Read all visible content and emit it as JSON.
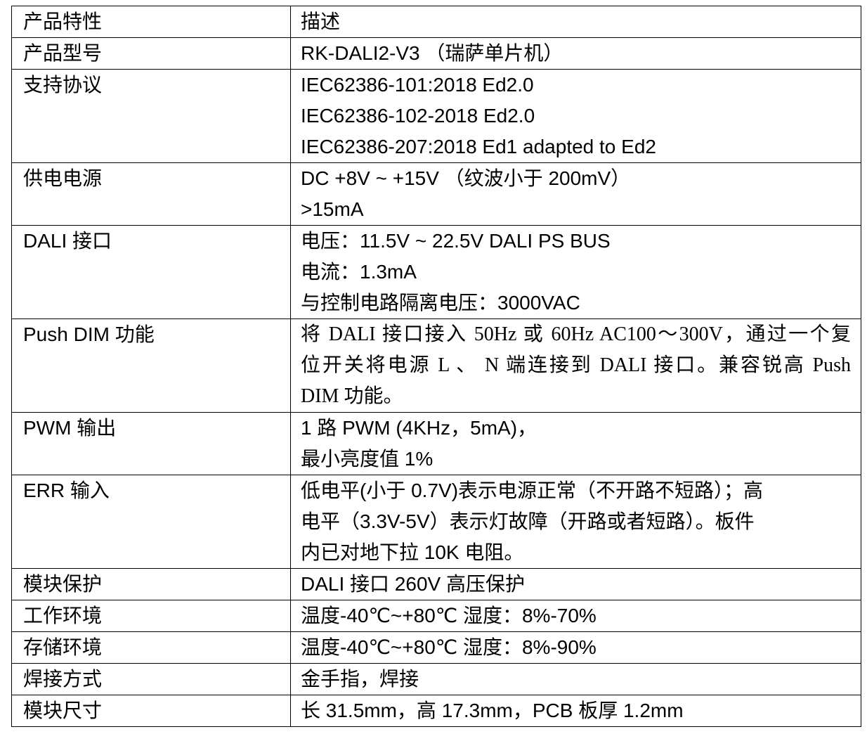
{
  "table": {
    "header": {
      "feature": "产品特性",
      "description": "描述"
    },
    "rows": [
      {
        "feature": "产品型号",
        "lines": [
          "RK-DALI2-V3 （瑞萨单片机）"
        ]
      },
      {
        "feature": "支持协议",
        "lines": [
          "IEC62386-101:2018 Ed2.0",
          "IEC62386-102-2018 Ed2.0",
          "IEC62386-207:2018 Ed1 adapted to Ed2"
        ]
      },
      {
        "feature": "供电电源",
        "lines": [
          "DC +8V ~ +15V （纹波小于 200mV）",
          ">15mA"
        ]
      },
      {
        "feature": "DALI 接口",
        "lines": [
          "电压：11.5V ~ 22.5V DALI PS BUS",
          "电流：1.3mA",
          "与控制电路隔离电压：3000VAC"
        ]
      },
      {
        "feature": "Push DIM 功能",
        "lines": [
          "将 DALI 接口接入 50Hz 或 60Hz AC100～300V，通过一个复",
          "位开关将电源 L 、 N 端连接到 DALI 接口。兼容锐高 Push",
          "DIM 功能。"
        ]
      },
      {
        "feature": "PWM 输出",
        "lines": [
          "1 路 PWM (4KHz，5mA)，",
          "最小亮度值 1%"
        ]
      },
      {
        "feature": "ERR 输入",
        "lines": [
          "低电平(小于 0.7V)表示电源正常（不开路不短路）；高",
          "电平（3.3V-5V）表示灯故障（开路或者短路）。板件",
          "内已对地下拉 10K 电阻。"
        ]
      },
      {
        "feature": "模块保护",
        "lines": [
          "DALI 接口 260V 高压保护"
        ]
      },
      {
        "feature": "工作环境",
        "lines": [
          "温度-40℃~+80℃ 湿度：8%-70%"
        ]
      },
      {
        "feature": "存储环境",
        "lines": [
          "温度-40℃~+80℃ 湿度：8%-90%"
        ]
      },
      {
        "feature": "焊接方式",
        "lines": [
          "金手指，焊接"
        ]
      },
      {
        "feature": "模块尺寸",
        "lines": [
          "长 31.5mm，高 17.3mm，PCB 板厚 1.2mm"
        ]
      }
    ]
  }
}
